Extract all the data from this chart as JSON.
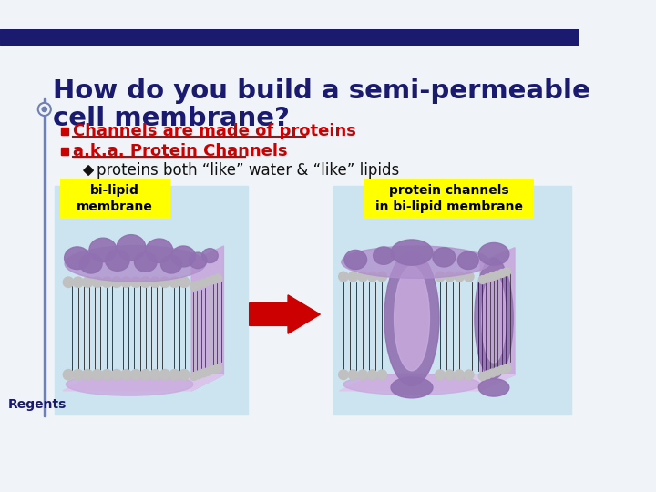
{
  "bg_color": "#f0f4f8",
  "top_bar_color": "#1a1a6e",
  "title_line1": "How do you build a semi-permeable",
  "title_line2": "cell membrane?",
  "title_color": "#1a1a6e",
  "bullet1": "Channels are made of proteins",
  "bullet2": "a.k.a. Protein Channels",
  "bullet_color": "#cc0000",
  "sub_bullet": "proteins both “like” water & “like” lipids",
  "sub_bullet_color": "#111111",
  "label1": "bi-lipid\nmembrane",
  "label2": "protein channels\nin bi-lipid membrane",
  "label_bg": "#ffff00",
  "arrow_color": "#cc0000",
  "footer_text": "Regents",
  "footer_color": "#1a1a6e",
  "left_line_color": "#7080b0",
  "img_bg_color": "#cce4f0",
  "blob_color": "#9070b0",
  "blob_light": "#b090cc",
  "blob_lighter": "#c8aade",
  "tail_color": "#111111",
  "head_color": "#c0c0c0",
  "side_color": "#c8a8dc",
  "bot_color": "#dcc8ec"
}
